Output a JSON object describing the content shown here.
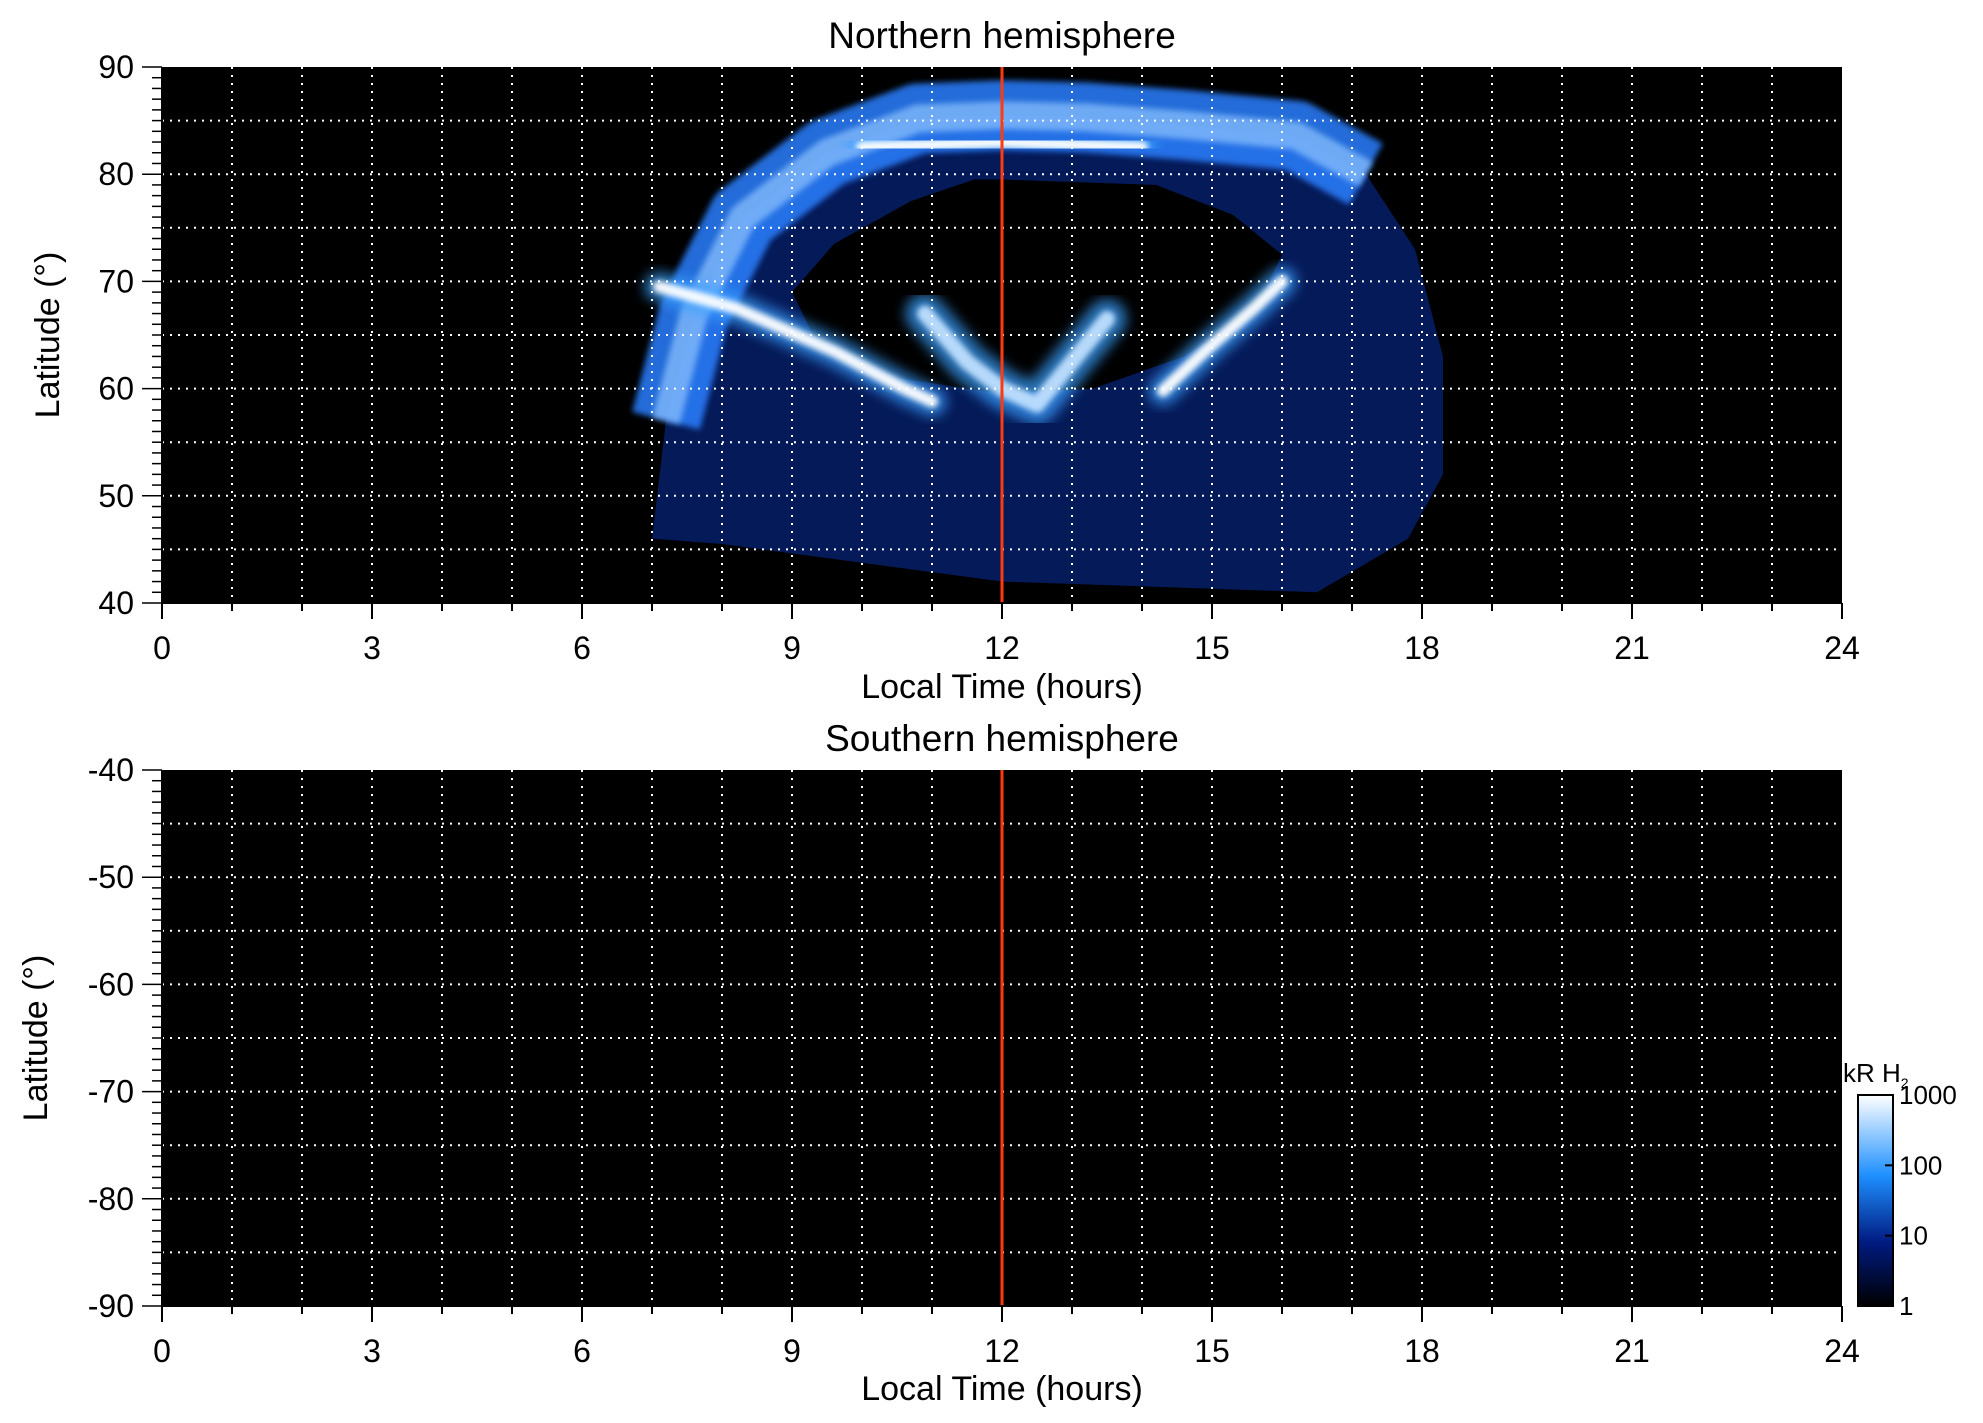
{
  "chart_data": [
    {
      "type": "heatmap",
      "title": "Northern hemisphere",
      "xlabel": "Local Time (hours)",
      "ylabel": "Latitude (°)",
      "xlim": [
        0,
        24
      ],
      "ylim": [
        40,
        90
      ],
      "xticks": [
        0,
        3,
        6,
        9,
        12,
        15,
        18,
        21,
        24
      ],
      "yticks": [
        40,
        50,
        60,
        70,
        80,
        90
      ],
      "grid": true,
      "marker_line": {
        "x": 12,
        "color": "#ff3a10"
      },
      "background": "#000000",
      "emission_region": {
        "outer_boundary": [
          [
            7.0,
            46.0
          ],
          [
            7.2,
            57.0
          ],
          [
            7.6,
            67.0
          ],
          [
            8.3,
            76.0
          ],
          [
            9.5,
            82.0
          ],
          [
            10.8,
            85.2
          ],
          [
            12.0,
            85.5
          ],
          [
            13.2,
            85.3
          ],
          [
            14.6,
            84.6
          ],
          [
            16.2,
            83.6
          ],
          [
            17.2,
            80.0
          ],
          [
            17.9,
            73.0
          ],
          [
            18.3,
            63.0
          ],
          [
            18.3,
            52.0
          ],
          [
            17.8,
            46.0
          ],
          [
            16.5,
            41.0
          ],
          [
            12.0,
            42.0
          ],
          [
            8.0,
            45.5
          ]
        ],
        "polar_cap_boundary": [
          [
            9.0,
            69.0
          ],
          [
            9.6,
            73.5
          ],
          [
            10.7,
            77.5
          ],
          [
            11.6,
            79.5
          ],
          [
            12.0,
            79.5
          ],
          [
            14.2,
            79.0
          ],
          [
            15.3,
            76.2
          ],
          [
            16.0,
            72.5
          ],
          [
            15.6,
            67.0
          ],
          [
            14.6,
            63.0
          ],
          [
            13.3,
            60.0
          ],
          [
            12.0,
            59.5
          ],
          [
            10.5,
            61.0
          ],
          [
            9.3,
            65.0
          ]
        ]
      },
      "features": [
        {
          "name": "dawn arc",
          "points": [
            [
              7.1,
              69.5
            ],
            [
              8.2,
              67.5
            ],
            [
              9.6,
              63.5
            ],
            [
              10.6,
              60.0
            ],
            [
              11.0,
              58.8
            ]
          ],
          "intensity_kR": 1000
        },
        {
          "name": "dusk arc",
          "points": [
            [
              14.3,
              59.8
            ],
            [
              14.9,
              63.5
            ],
            [
              15.6,
              67.5
            ],
            [
              16.0,
              70.0
            ]
          ],
          "intensity_kR": 800
        },
        {
          "name": "noon emission",
          "points": [
            [
              10.9,
              67.0
            ],
            [
              11.5,
              62.5
            ],
            [
              12.0,
              60.0
            ],
            [
              12.5,
              58.5
            ],
            [
              13.0,
              62.5
            ],
            [
              13.5,
              66.5
            ]
          ],
          "intensity_kR": 500
        },
        {
          "name": "high-latitude band",
          "points": [
            [
              10.0,
              82.5
            ],
            [
              12.0,
              83.0
            ],
            [
              14.0,
              82.5
            ]
          ],
          "intensity_kR": 1000
        }
      ]
    },
    {
      "type": "heatmap",
      "title": "Southern hemisphere",
      "xlabel": "Local Time (hours)",
      "ylabel": "Latitude (°)",
      "xlim": [
        0,
        24
      ],
      "ylim": [
        -90,
        -40
      ],
      "xticks": [
        0,
        3,
        6,
        9,
        12,
        15,
        18,
        21,
        24
      ],
      "yticks": [
        -40,
        -50,
        -60,
        -70,
        -80,
        -90
      ],
      "grid": true,
      "marker_line": {
        "x": 12,
        "color": "#ff3a10"
      },
      "background": "#000000",
      "features": []
    }
  ],
  "colorbar": {
    "label": "kR H",
    "label_subscript": "2",
    "scale": "log",
    "range": [
      1,
      1000
    ],
    "ticks": [
      "1",
      "10",
      "100",
      "1000"
    ],
    "colors": [
      "#000000",
      "#001a80",
      "#1e90ff",
      "#ffffff"
    ]
  }
}
